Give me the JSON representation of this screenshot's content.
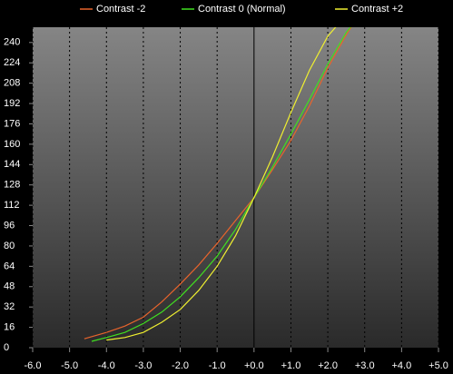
{
  "chart_data": {
    "type": "line",
    "xlim": [
      -6.0,
      5.0
    ],
    "xticks": [
      {
        "value": -6,
        "label": "-6.0"
      },
      {
        "value": -5,
        "label": "-5.0"
      },
      {
        "value": -4,
        "label": "-4.0"
      },
      {
        "value": -3,
        "label": "-3.0"
      },
      {
        "value": -2,
        "label": "-2.0"
      },
      {
        "value": -1,
        "label": "-1.0"
      },
      {
        "value": 0,
        "label": "+0.0"
      },
      {
        "value": 1,
        "label": "+1.0"
      },
      {
        "value": 2,
        "label": "+2.0"
      },
      {
        "value": 3,
        "label": "+3.0"
      },
      {
        "value": 4,
        "label": "+4.0"
      },
      {
        "value": 5,
        "label": "+5.0"
      }
    ],
    "ylim": [
      0,
      252
    ],
    "yticks": [
      0,
      16,
      32,
      48,
      64,
      80,
      96,
      112,
      128,
      144,
      160,
      176,
      192,
      208,
      224,
      240
    ],
    "grid": true,
    "legend": "top",
    "series": [
      {
        "name": "Contrast -2",
        "color": "#e8642c",
        "x": [
          -4.6,
          -4.0,
          -3.5,
          -3.0,
          -2.5,
          -2.0,
          -1.5,
          -1.0,
          -0.5,
          0,
          0.5,
          1.0,
          1.5,
          2.0,
          2.5,
          2.7
        ],
        "values": [
          7,
          12,
          17,
          24,
          36,
          50,
          65,
          82,
          100,
          118,
          140,
          163,
          190,
          220,
          246,
          255
        ]
      },
      {
        "name": "Contrast 0 (Normal)",
        "color": "#40e020",
        "x": [
          -4.4,
          -4.0,
          -3.5,
          -3.0,
          -2.5,
          -2.0,
          -1.5,
          -1.0,
          -0.5,
          0,
          0.5,
          1.0,
          1.5,
          2.0,
          2.5,
          2.7
        ],
        "values": [
          5,
          8,
          12,
          19,
          28,
          40,
          55,
          72,
          93,
          118,
          142,
          168,
          195,
          223,
          248,
          255
        ]
      },
      {
        "name": "Contrast +2",
        "color": "#f0f030",
        "x": [
          -4.0,
          -3.5,
          -3.0,
          -2.5,
          -2.0,
          -1.5,
          -1.0,
          -0.5,
          0,
          0.5,
          1.0,
          1.5,
          2.0,
          2.3
        ],
        "values": [
          6,
          8,
          12,
          20,
          30,
          45,
          64,
          88,
          118,
          150,
          185,
          218,
          245,
          255
        ]
      }
    ]
  }
}
